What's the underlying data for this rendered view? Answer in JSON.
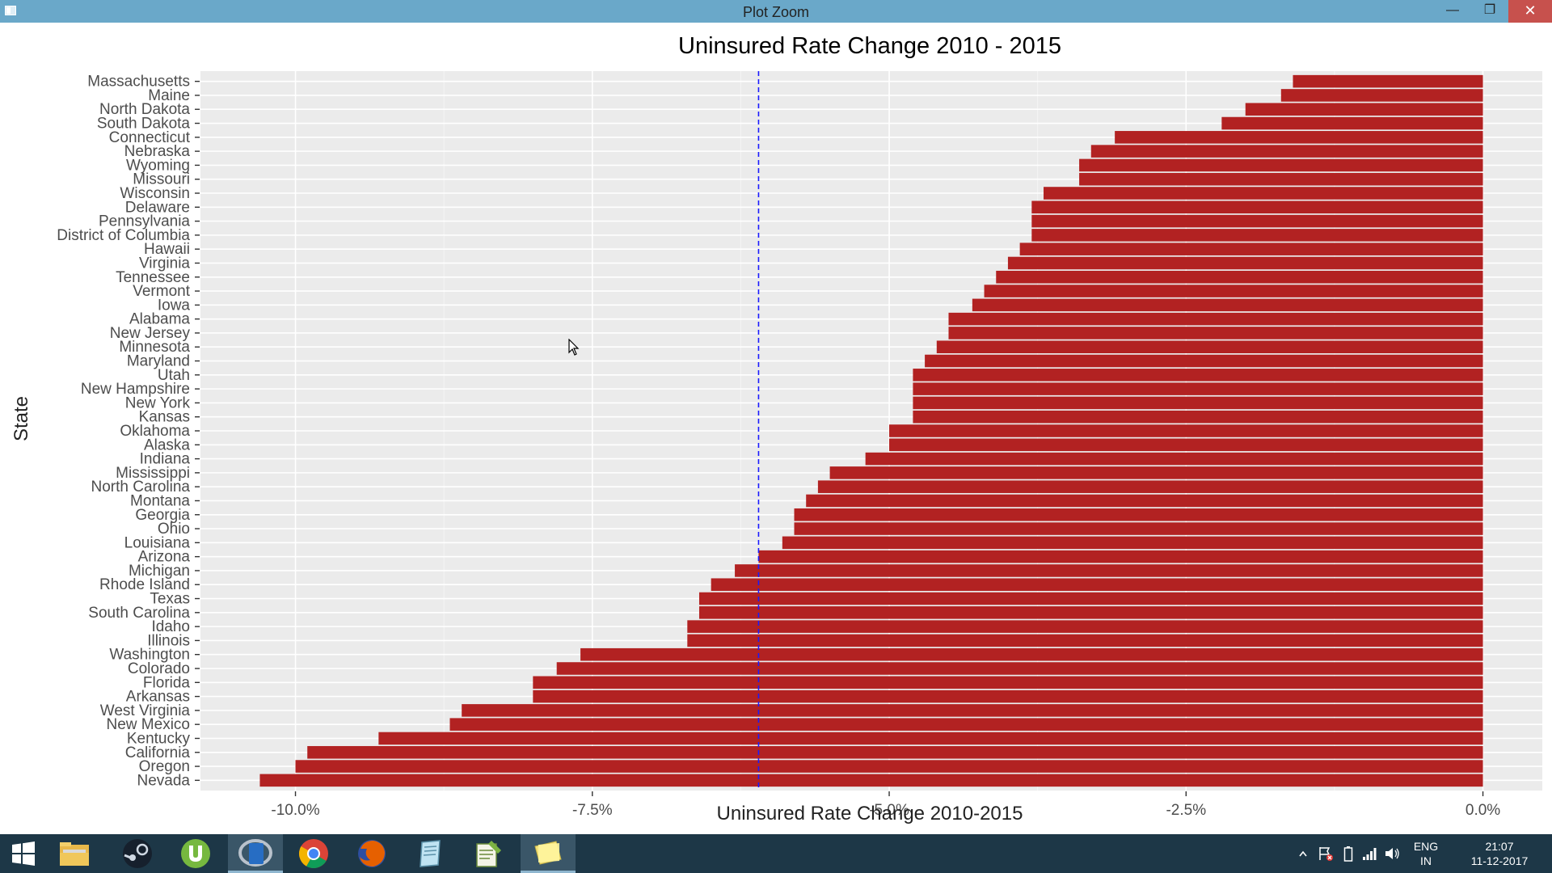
{
  "window": {
    "title": "Plot Zoom",
    "minimize_glyph": "—",
    "maximize_glyph": "❐",
    "close_glyph": "✕"
  },
  "chart_data": {
    "type": "bar",
    "orientation": "horizontal",
    "title": "Uninsured Rate Change 2010 - 2015",
    "xlabel": "Uninsured Rate Change 2010-2015",
    "ylabel": "State",
    "xlim": [
      -10.8,
      0.5
    ],
    "x_ticks": [
      -10.0,
      -7.5,
      -5.0,
      -2.5,
      0.0
    ],
    "x_tick_labels": [
      "-10.0%",
      "-7.5%",
      "-5.0%",
      "-2.5%",
      "0.0%"
    ],
    "reference_line": {
      "value": -6.1,
      "style": "dashed",
      "color": "#1a1aff"
    },
    "bar_color": "#b22222",
    "panel_background": "#ebebeb",
    "grid": true,
    "categories": [
      "Massachusetts",
      "Maine",
      "North Dakota",
      "South Dakota",
      "Connecticut",
      "Nebraska",
      "Wyoming",
      "Missouri",
      "Wisconsin",
      "Delaware",
      "Pennsylvania",
      "District of Columbia",
      "Hawaii",
      "Virginia",
      "Tennessee",
      "Vermont",
      "Iowa",
      "Alabama",
      "New Jersey",
      "Minnesota",
      "Maryland",
      "Utah",
      "New Hampshire",
      "New York",
      "Kansas",
      "Oklahoma",
      "Alaska",
      "Indiana",
      "Mississippi",
      "North Carolina",
      "Montana",
      "Georgia",
      "Ohio",
      "Louisiana",
      "Arizona",
      "Michigan",
      "Rhode Island",
      "Texas",
      "South Carolina",
      "Idaho",
      "Illinois",
      "Washington",
      "Colorado",
      "Florida",
      "Arkansas",
      "West Virginia",
      "New Mexico",
      "Kentucky",
      "California",
      "Oregon",
      "Nevada"
    ],
    "values": [
      -1.6,
      -1.7,
      -2.0,
      -2.2,
      -3.1,
      -3.3,
      -3.4,
      -3.4,
      -3.7,
      -3.8,
      -3.8,
      -3.8,
      -3.9,
      -4.0,
      -4.1,
      -4.2,
      -4.3,
      -4.5,
      -4.5,
      -4.6,
      -4.7,
      -4.8,
      -4.8,
      -4.8,
      -4.8,
      -5.0,
      -5.0,
      -5.2,
      -5.5,
      -5.6,
      -5.7,
      -5.8,
      -5.8,
      -5.9,
      -6.1,
      -6.3,
      -6.5,
      -6.6,
      -6.6,
      -6.7,
      -6.7,
      -7.6,
      -7.8,
      -8.0,
      -8.0,
      -8.6,
      -8.7,
      -9.3,
      -9.9,
      -10.0,
      -10.3
    ]
  },
  "taskbar": {
    "apps": [
      {
        "name": "start",
        "icon": "windows-start-icon"
      },
      {
        "name": "explorer",
        "icon": "file-explorer-icon"
      },
      {
        "name": "steam",
        "icon": "steam-icon"
      },
      {
        "name": "utorrent",
        "icon": "utorrent-icon"
      },
      {
        "name": "r",
        "icon": "r-icon",
        "label": "R"
      },
      {
        "name": "chrome",
        "icon": "chrome-icon"
      },
      {
        "name": "firefox",
        "icon": "firefox-icon"
      },
      {
        "name": "notepad",
        "icon": "notepad-icon"
      },
      {
        "name": "editor",
        "icon": "text-editor-icon"
      },
      {
        "name": "sticky",
        "icon": "sticky-notes-icon"
      }
    ],
    "tray": {
      "lang_top": "ENG",
      "lang_bottom": "IN",
      "time": "21:07",
      "date": "11-12-2017"
    }
  }
}
